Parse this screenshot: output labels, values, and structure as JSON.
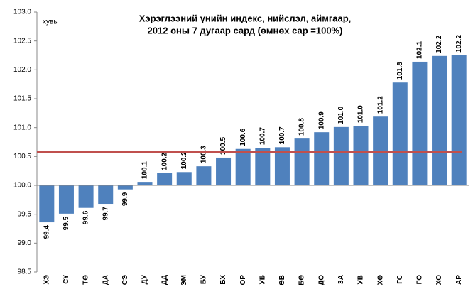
{
  "chart_data": {
    "type": "bar",
    "title": [
      "Хэрэглээний үнийн индекс, нийслэл, аймгаар,",
      "2012 оны  7 дугаар сард (өмнөх сар =100%)"
    ],
    "ylabel": "хувь",
    "categories": [
      "ХЭ",
      "СҮ",
      "ТӨ",
      "ДА",
      "СЭ",
      "ДУ",
      "ДД",
      "ЭМ",
      "БУ",
      "БХ",
      "ОР",
      "УБ",
      "ӨВ",
      "БӨ",
      "ДО",
      "ЗА",
      "УВ",
      "ХӨ",
      "ГС",
      "ГО",
      "ХО",
      "АР"
    ],
    "values": [
      99.36,
      99.51,
      99.61,
      99.68,
      99.93,
      100.06,
      100.21,
      100.23,
      100.33,
      100.48,
      100.63,
      100.65,
      100.66,
      100.81,
      100.92,
      101.01,
      101.03,
      101.19,
      101.78,
      102.14,
      102.24,
      102.25
    ],
    "value_labels": [
      "99.4",
      "99.5",
      "99.6",
      "99.7",
      "99.9",
      "100.1",
      "100.2",
      "100.2",
      "100.3",
      "100.5",
      "100.6",
      "100.7",
      "100.7",
      "100.8",
      "100.9",
      "101.0",
      "101.0",
      "101.2",
      "101.8",
      "102.1",
      "102.2",
      "102.2"
    ],
    "base": 100,
    "reference_line": {
      "value": 100.58,
      "color": "#c0504d"
    },
    "color": "#4f81bd",
    "ylim": [
      98.5,
      103.0
    ],
    "yticks": [
      98.5,
      {
        "value": 99.0,
        "label": "99.0"
      },
      99.5,
      {
        "value": 100.0,
        "label": "100.0"
      },
      100.5,
      {
        "value": 101.0,
        "label": "101.0"
      },
      101.5,
      {
        "value": 102.0,
        "label": "102.0"
      },
      102.5,
      {
        "value": 103.0,
        "label": "103.0"
      }
    ],
    "grid": false
  }
}
